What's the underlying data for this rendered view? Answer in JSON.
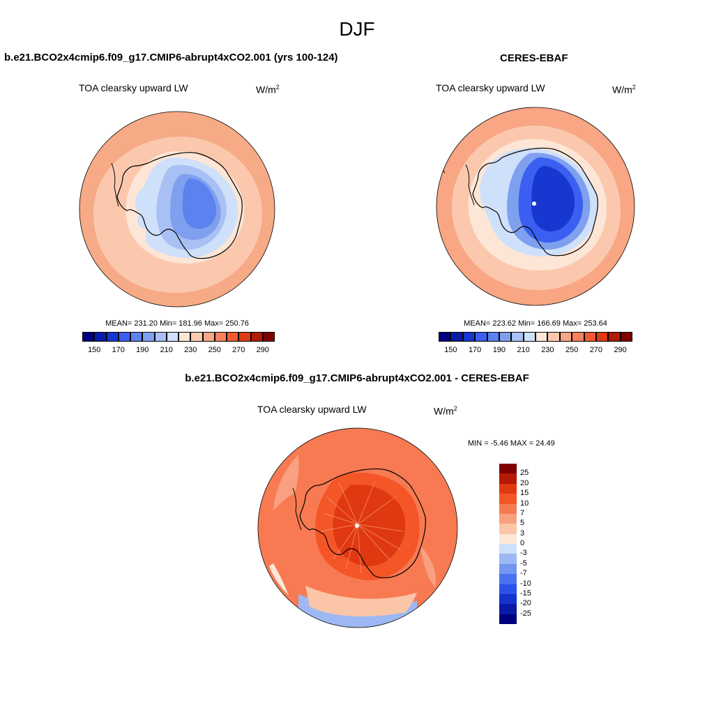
{
  "figure": {
    "season": "DJF",
    "variable": "TOA clearsky upward LW",
    "units_base": "W/m",
    "units_exp": "2"
  },
  "panels": {
    "model": {
      "title": "b.e21.BCO2x4cmip6.f09_g17.CMIP6-abrupt4xCO2.001 (yrs 100-124)",
      "stats": "MEAN= 231.20  Min= 181.96  Max= 250.76"
    },
    "obs": {
      "title": "CERES-EBAF",
      "stats": "MEAN= 223.62  Min= 166.69  Max= 253.64"
    },
    "diff": {
      "title": "b.e21.BCO2x4cmip6.f09_g17.CMIP6-abrupt4xCO2.001 - CERES-EBAF",
      "stats": "MIN =  -5.46 MAX =  24.49"
    }
  },
  "colorbars": {
    "abs": {
      "colors": [
        "#00007f",
        "#0c1aa8",
        "#1737d0",
        "#3b5ff0",
        "#5b82ee",
        "#7fa0ef",
        "#a9c0f4",
        "#cfe0fa",
        "#fde6d6",
        "#fbc8ae",
        "#f8a684",
        "#f7825e",
        "#f45a32",
        "#dd3b12",
        "#b01c06",
        "#7f0000"
      ],
      "labels": [
        "150",
        "170",
        "190",
        "210",
        "230",
        "250",
        "270",
        "290"
      ]
    },
    "diff": {
      "colors": [
        "#00007f",
        "#0a1aa8",
        "#1433cc",
        "#2a52ea",
        "#4a72f0",
        "#7396ef",
        "#9db8f3",
        "#cde0fa",
        "#fde8d8",
        "#fbc5a8",
        "#f8a080",
        "#f77a52",
        "#f45628",
        "#e03810",
        "#b51a04",
        "#7f0000"
      ],
      "labels": [
        "25",
        "20",
        "15",
        "10",
        "7",
        "5",
        "3",
        "0",
        "-3",
        "-5",
        "-7",
        "-10",
        "-15",
        "-20",
        "-25"
      ]
    }
  }
}
